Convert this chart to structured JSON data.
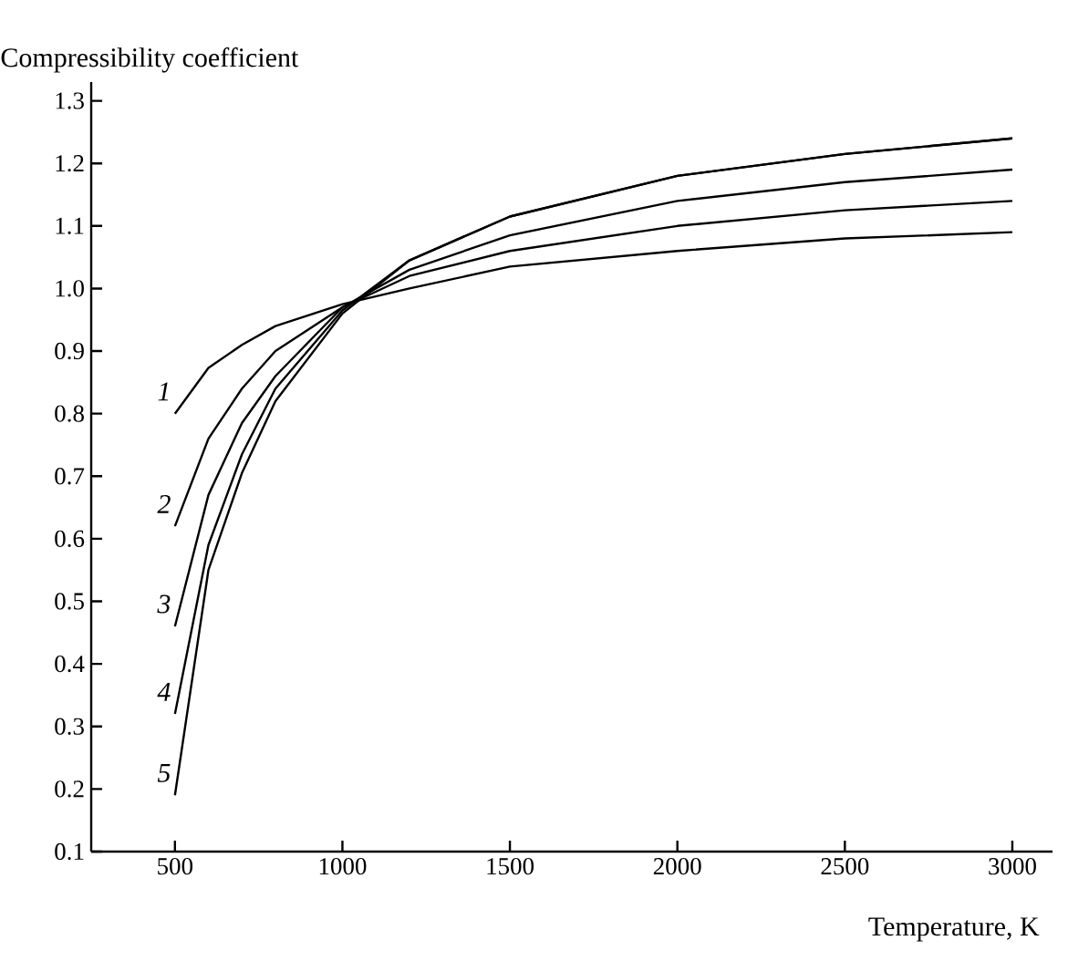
{
  "chart_data": {
    "type": "line",
    "xlabel": "Temperature, K",
    "ylabel": "Compressibility coefficient",
    "x": [
      500,
      600,
      700,
      800,
      1000,
      1200,
      1500,
      2000,
      2500,
      3000
    ],
    "series": [
      {
        "name": "1",
        "color": "#000000",
        "values": [
          0.8,
          0.873,
          0.91,
          0.94,
          0.975,
          1.0,
          1.035,
          1.06,
          1.08,
          1.09
        ]
      },
      {
        "name": "2",
        "color": "#000000",
        "values": [
          0.62,
          0.76,
          0.84,
          0.9,
          0.97,
          1.02,
          1.06,
          1.1,
          1.125,
          1.14
        ]
      },
      {
        "name": "3",
        "color": "#000000",
        "values": [
          0.46,
          0.67,
          0.785,
          0.86,
          0.97,
          1.03,
          1.085,
          1.14,
          1.17,
          1.19
        ]
      },
      {
        "name": "4",
        "color": "#000000",
        "values": [
          0.32,
          0.59,
          0.735,
          0.84,
          0.965,
          1.045,
          1.115,
          1.18,
          1.215,
          1.24
        ]
      },
      {
        "name": "5",
        "color": "#000000",
        "values": [
          0.19,
          0.55,
          0.705,
          0.82,
          0.96,
          1.045,
          1.115,
          1.18,
          1.215,
          1.24
        ]
      }
    ],
    "xlim": [
      250,
      3120
    ],
    "ylim": [
      0.1,
      1.33
    ],
    "xticks": [
      500,
      1000,
      1500,
      2000,
      2500,
      3000
    ],
    "yticks": [
      0.1,
      0.2,
      0.3,
      0.4,
      0.5,
      0.6,
      0.7,
      0.8,
      0.9,
      {
        "value": 1.0,
        "label": "1.0"
      },
      1.1,
      1.2,
      1.3
    ],
    "grid": false,
    "legend": false,
    "marker": "none",
    "line_style": "solid"
  }
}
